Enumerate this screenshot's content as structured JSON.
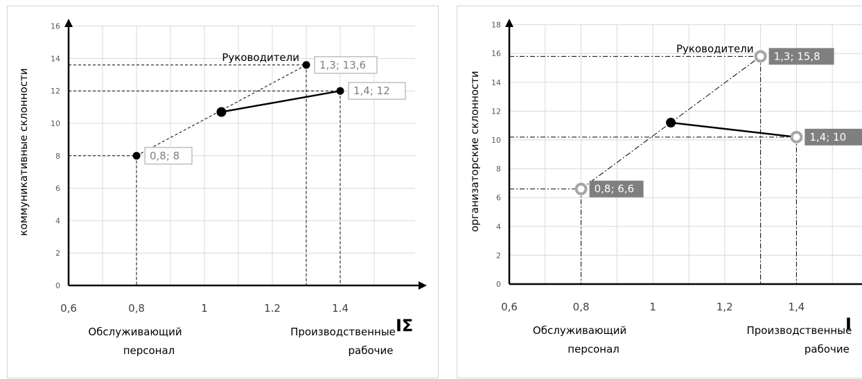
{
  "chart_data": [
    {
      "type": "scatter",
      "ylabel": "коммуникативные склонности",
      "xlabel": "IΣ",
      "x_ticks": [
        "0,6",
        "0,8",
        "1",
        "1.2",
        "1.4"
      ],
      "y_ticks": [
        "0",
        "2",
        "4",
        "6",
        "8",
        "10",
        "12",
        "14",
        "16"
      ],
      "xlim": [
        0.6,
        1.6
      ],
      "ylim": [
        0,
        16.5
      ],
      "grid": true,
      "points": [
        {
          "x": 0.8,
          "y": 8,
          "label": "0,8; 8"
        },
        {
          "x": 1.3,
          "y": 13.6,
          "label": "1,3; 13,6"
        },
        {
          "x": 1.4,
          "y": 12,
          "label": "1,4; 12"
        },
        {
          "x": 1.05,
          "y": 10.7,
          "label": ""
        }
      ],
      "lines": [
        {
          "style": "dashed",
          "from": [
            0.8,
            8
          ],
          "to": [
            1.3,
            13.6
          ]
        },
        {
          "style": "solid",
          "from": [
            1.05,
            10.7
          ],
          "to": [
            1.4,
            12
          ]
        }
      ],
      "annotations": [
        {
          "text": "Руководители",
          "x": 1.3,
          "y": 13.6
        },
        {
          "text": "Обслуживающий персонал",
          "x": 0.8
        },
        {
          "text": "Производственные рабочие",
          "x": 1.4
        }
      ]
    },
    {
      "type": "scatter",
      "ylabel": "организаторские склонности",
      "xlabel": "I",
      "x_ticks": [
        "0,6",
        "0,8",
        "1",
        "1,2",
        "1,4"
      ],
      "y_ticks": [
        "0",
        "2",
        "4",
        "6",
        "8",
        "10",
        "12",
        "14",
        "16",
        "18"
      ],
      "xlim": [
        0.6,
        1.6
      ],
      "ylim": [
        0,
        18.5
      ],
      "grid": true,
      "points": [
        {
          "x": 0.8,
          "y": 6.6,
          "label": "0,8; 6,6"
        },
        {
          "x": 1.3,
          "y": 15.8,
          "label": "1,3; 15,8"
        },
        {
          "x": 1.4,
          "y": 10.2,
          "label": "1,4; 10"
        },
        {
          "x": 1.05,
          "y": 11.2,
          "label": ""
        }
      ],
      "lines": [
        {
          "style": "dashdot",
          "from": [
            0.8,
            6.6
          ],
          "to": [
            1.3,
            15.8
          ]
        },
        {
          "style": "solid",
          "from": [
            1.05,
            11.2
          ],
          "to": [
            1.4,
            10.2
          ]
        }
      ],
      "annotations": [
        {
          "text": "Руководители",
          "x": 1.3,
          "y": 15.8
        },
        {
          "text": "Обслуживающий персонал",
          "x": 0.8
        },
        {
          "text": "Производственные рабочие",
          "x": 1.4
        }
      ]
    }
  ],
  "category_labels": {
    "left": {
      "service_1": "Обслуживающий",
      "service_2": "персонал",
      "production_1": "Производственные",
      "production_2": "рабочие",
      "managers": "Руководители"
    },
    "right": {
      "service_1": "Обслуживающий",
      "service_2": "персонал",
      "production_1": "Производственные",
      "production_2": "рабочие",
      "managers": "Руководители"
    }
  },
  "colors": {
    "axis": "#000000",
    "grid": "#d9d9d9",
    "left_marker": "#000000",
    "left_label_border": "#bfbfbf",
    "left_label_text": "#7f7f7f",
    "right_marker_ring": "#a6a6a6",
    "right_label_fill": "#7f7f7f",
    "right_label_text": "#ffffff"
  }
}
